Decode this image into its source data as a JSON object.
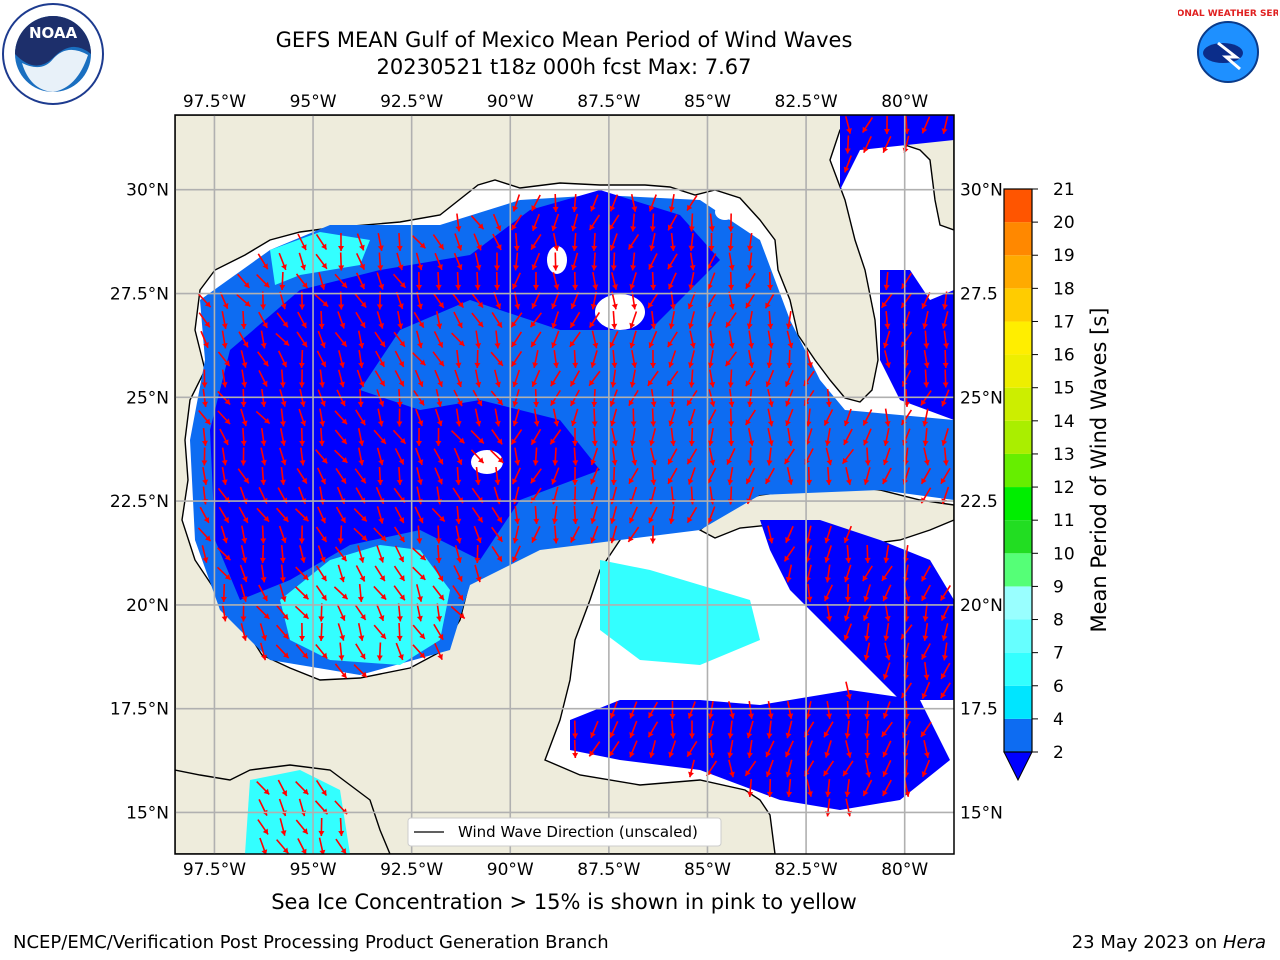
{
  "title": {
    "line1": "GEFS MEAN Gulf of Mexico Mean Period of Wind Waves",
    "line2": "20230521 t18z 000h fcst   Max: 7.67"
  },
  "subtitle": "Sea Ice Concentration > 15% is shown in pink to yellow",
  "footer": {
    "left": "NCEP/EMC/Verification Post Processing Product Generation Branch",
    "right_prefix": "23 May 2023 on ",
    "right_host": "Hera"
  },
  "logos": {
    "left": "NOAA",
    "right": "NATIONAL WEATHER SERVICE"
  },
  "map": {
    "lon_range": [
      -98.5,
      -78.75
    ],
    "lat_range": [
      14.0,
      31.8
    ],
    "lon_ticks": [
      "97.5°W",
      "95°W",
      "92.5°W",
      "90°W",
      "87.5°W",
      "85°W",
      "82.5°W",
      "80°W"
    ],
    "lat_ticks_left": [
      "15°N",
      "17.5°N",
      "20°N",
      "22.5°N",
      "25°N",
      "27.5°N",
      "30°N"
    ],
    "lat_ticks_right": [
      "15°N",
      "17.5",
      "20°N",
      "22.5",
      "25°N",
      "27.5",
      "30°N"
    ],
    "legend_label": "Wind Wave Direction (unscaled)",
    "colors": {
      "land": "#eeecdc",
      "arrow": "#ff0000",
      "grid": "#b0b0b0"
    }
  },
  "colorbar": {
    "label": "Mean Period of Wind Waves [s]",
    "tick_labels": [
      "2",
      "4",
      "6",
      "7",
      "8",
      "9",
      "10",
      "11",
      "12",
      "13",
      "14",
      "15",
      "16",
      "17",
      "18",
      "19",
      "20",
      "21"
    ],
    "colors": [
      "#0d6cf2",
      "#00e5ff",
      "#33ffff",
      "#66ffff",
      "#99ffff",
      "#55ff77",
      "#22dd22",
      "#00ee00",
      "#66ee00",
      "#aaee00",
      "#ccee00",
      "#eeee00",
      "#ffee00",
      "#ffcc00",
      "#ffaa00",
      "#ff8800",
      "#ff5500",
      "#ff2200",
      "#ff0000"
    ],
    "extend_color": "#0000ff"
  }
}
